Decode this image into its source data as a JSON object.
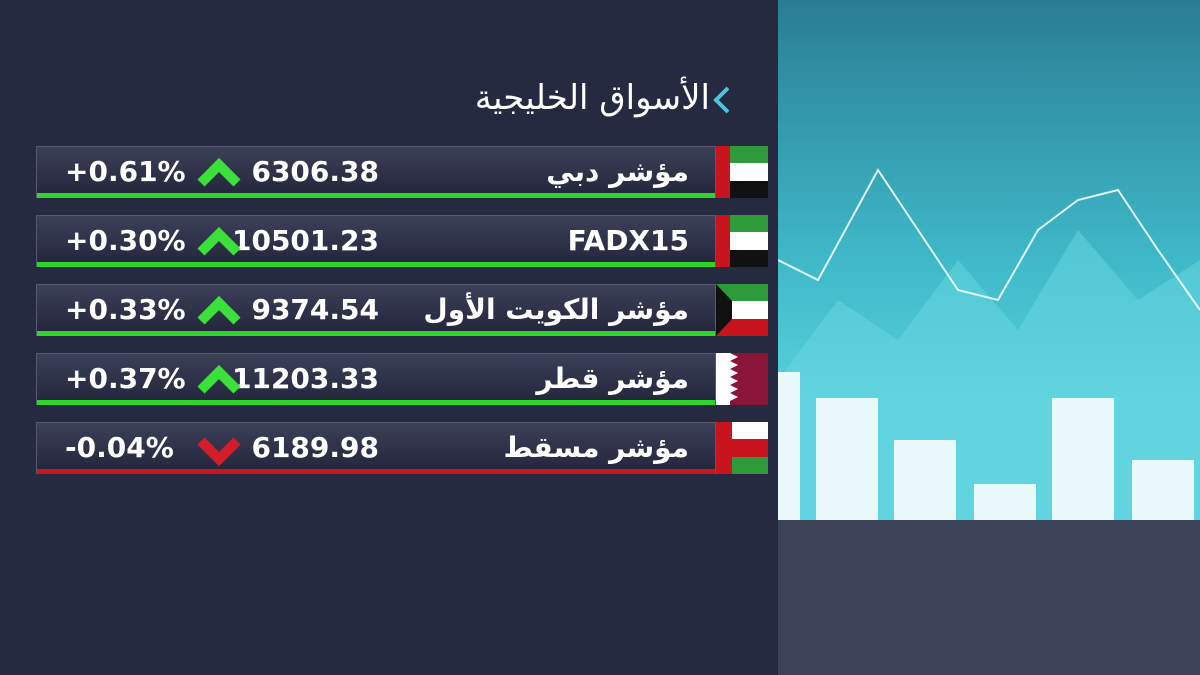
{
  "header": {
    "title": "الأسواق الخليجية"
  },
  "table": {
    "rows": [
      {
        "name": "مؤشر دبي",
        "value": "6306.38",
        "change": "+0.61%"
      },
      {
        "name": "FADX15",
        "value": "10501.23",
        "change": "+0.30%"
      },
      {
        "name": "مؤشر الكويت الأول",
        "value": "9374.54",
        "change": "+0.33%"
      },
      {
        "name": "مؤشر قطر",
        "value": "11203.33",
        "change": "+0.37%"
      },
      {
        "name": "مؤشر مسقط",
        "value": "6189.98",
        "change": "-0.04%"
      }
    ]
  }
}
